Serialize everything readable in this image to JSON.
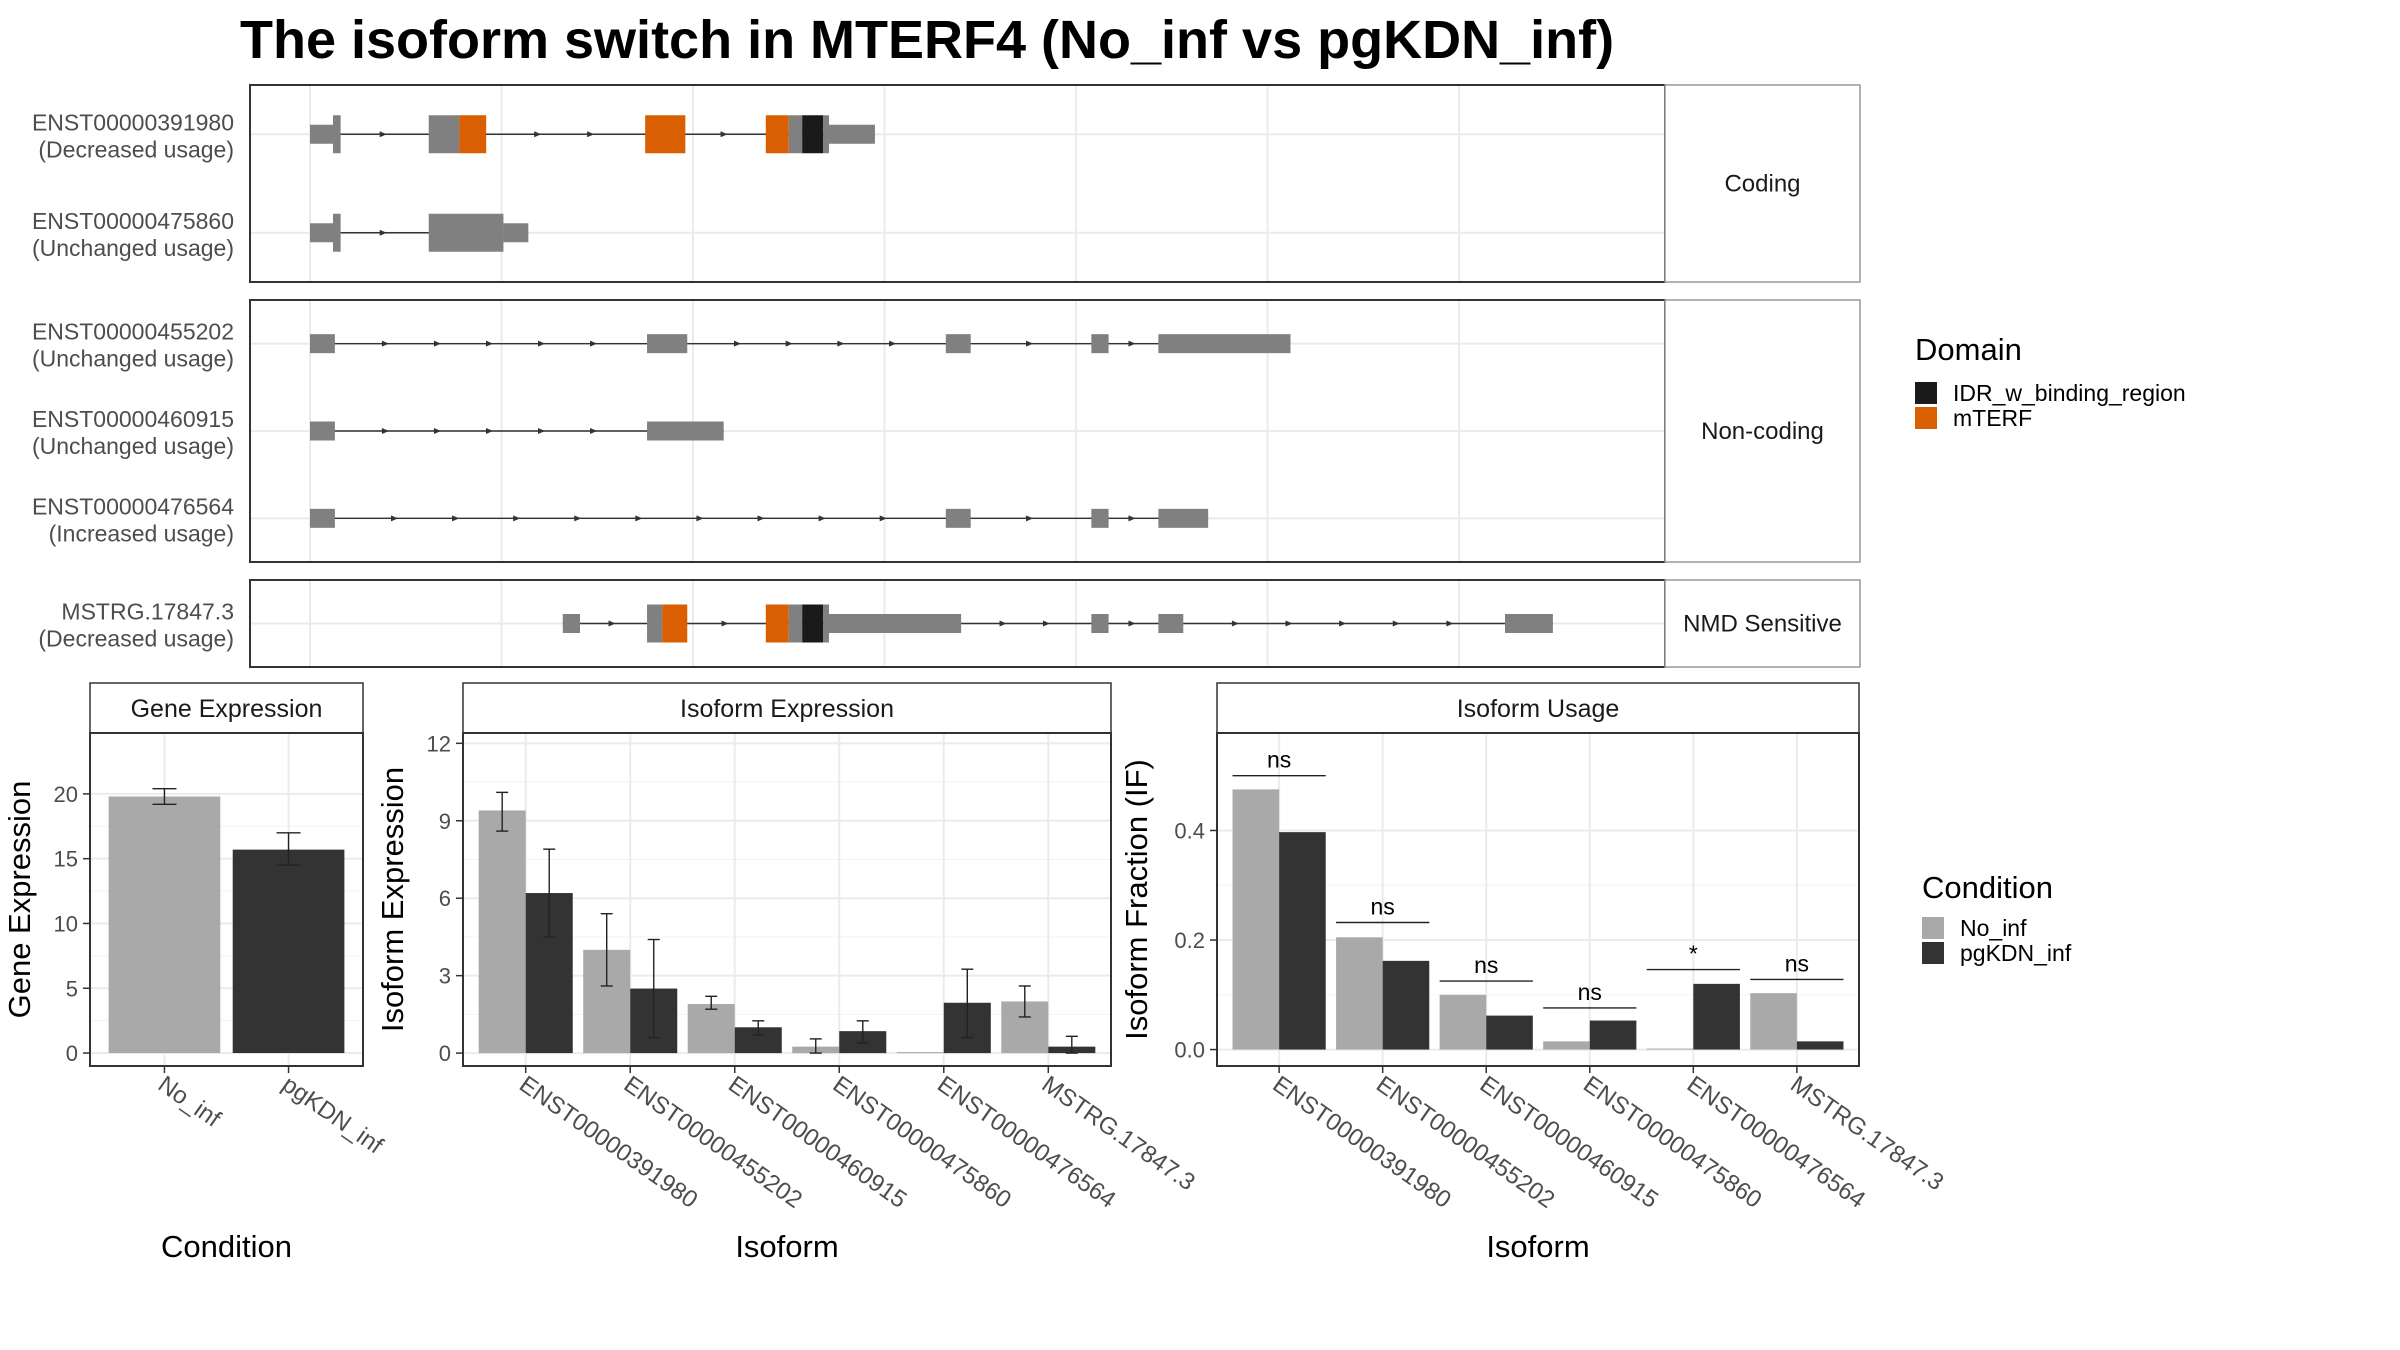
{
  "title": "The isoform switch in MTERF4 (No_inf vs pgKDN_inf)",
  "colors": {
    "exon": "#808080",
    "mTERF": "#d95f02",
    "IDR": "#1a1a1a",
    "No_inf": "#a9a9a9",
    "pgKDN_inf": "#333333",
    "panel_border": "#333333",
    "strip_fill": "#ffffff",
    "grid": "#ebebeb"
  },
  "structure": {
    "groups": [
      {
        "name": "Coding",
        "isoforms": [
          {
            "id": "ENST00000391980",
            "usage": "(Decreased usage)",
            "exons": [
              {
                "s": 0.0,
                "e": 1.2,
                "type": "utr"
              },
              {
                "s": 1.2,
                "e": 1.6,
                "type": "exon"
              },
              {
                "s": 6.2,
                "e": 7.8,
                "type": "exon"
              },
              {
                "s": 7.8,
                "e": 9.2,
                "type": "mTERF"
              },
              {
                "s": 17.5,
                "e": 19.6,
                "type": "mTERF"
              },
              {
                "s": 23.8,
                "e": 25.0,
                "type": "mTERF"
              },
              {
                "s": 25.0,
                "e": 25.7,
                "type": "exon"
              },
              {
                "s": 25.7,
                "e": 26.8,
                "type": "IDR"
              },
              {
                "s": 26.8,
                "e": 27.1,
                "type": "exon"
              },
              {
                "s": 27.1,
                "e": 29.5,
                "type": "utr"
              }
            ]
          },
          {
            "id": "ENST00000475860",
            "usage": "(Unchanged usage)",
            "exons": [
              {
                "s": 0.0,
                "e": 1.2,
                "type": "utr"
              },
              {
                "s": 1.2,
                "e": 1.6,
                "type": "exon"
              },
              {
                "s": 6.2,
                "e": 10.1,
                "type": "exon"
              },
              {
                "s": 10.1,
                "e": 11.4,
                "type": "utr"
              }
            ]
          }
        ]
      },
      {
        "name": "Non-coding",
        "isoforms": [
          {
            "id": "ENST00000455202",
            "usage": "(Unchanged usage)",
            "exons": [
              {
                "s": 0.0,
                "e": 1.3,
                "type": "utr"
              },
              {
                "s": 17.6,
                "e": 19.7,
                "type": "utr"
              },
              {
                "s": 33.2,
                "e": 34.5,
                "type": "utr"
              },
              {
                "s": 40.8,
                "e": 41.7,
                "type": "utr"
              },
              {
                "s": 44.3,
                "e": 51.2,
                "type": "utr"
              }
            ]
          },
          {
            "id": "ENST00000460915",
            "usage": "(Unchanged usage)",
            "exons": [
              {
                "s": 0.0,
                "e": 1.3,
                "type": "utr"
              },
              {
                "s": 17.6,
                "e": 21.6,
                "type": "utr"
              }
            ]
          },
          {
            "id": "ENST00000476564",
            "usage": "(Increased usage)",
            "exons": [
              {
                "s": 0.0,
                "e": 1.3,
                "type": "utr"
              },
              {
                "s": 33.2,
                "e": 34.5,
                "type": "utr"
              },
              {
                "s": 40.8,
                "e": 41.7,
                "type": "utr"
              },
              {
                "s": 44.3,
                "e": 46.9,
                "type": "utr"
              }
            ]
          }
        ]
      },
      {
        "name": "NMD Sensitive",
        "isoforms": [
          {
            "id": "MSTRG.17847.3",
            "usage": "(Decreased usage)",
            "exons": [
              {
                "s": 13.2,
                "e": 14.1,
                "type": "utr"
              },
              {
                "s": 17.6,
                "e": 18.4,
                "type": "exon"
              },
              {
                "s": 18.4,
                "e": 19.7,
                "type": "mTERF"
              },
              {
                "s": 23.8,
                "e": 25.0,
                "type": "mTERF"
              },
              {
                "s": 25.0,
                "e": 25.7,
                "type": "exon"
              },
              {
                "s": 25.7,
                "e": 26.8,
                "type": "IDR"
              },
              {
                "s": 26.8,
                "e": 27.1,
                "type": "exon"
              },
              {
                "s": 27.1,
                "e": 34.0,
                "type": "utr"
              },
              {
                "s": 40.8,
                "e": 41.7,
                "type": "utr"
              },
              {
                "s": 44.3,
                "e": 45.6,
                "type": "utr"
              },
              {
                "s": 62.4,
                "e": 64.9,
                "type": "utr"
              }
            ]
          }
        ]
      }
    ],
    "xrange": [
      -3.1,
      67.4
    ],
    "vgrid": [
      0,
      10,
      20,
      30,
      40,
      50,
      60
    ]
  },
  "domain_legend": {
    "title": "Domain",
    "items": [
      {
        "label": "IDR_w_binding_region",
        "color": "#1a1a1a"
      },
      {
        "label": "mTERF",
        "color": "#d95f02"
      }
    ]
  },
  "condition_legend": {
    "title": "Condition",
    "items": [
      {
        "label": "No_inf",
        "color": "#a9a9a9"
      },
      {
        "label": "pgKDN_inf",
        "color": "#333333"
      }
    ]
  },
  "chart_data": [
    {
      "type": "bar",
      "title": "Gene Expression",
      "xlabel": "Condition",
      "ylabel": "Gene Expression",
      "categories": [
        "No_inf",
        "pgKDN_inf"
      ],
      "values": [
        19.8,
        15.7
      ],
      "errors": [
        [
          19.2,
          20.4
        ],
        [
          14.5,
          17.0
        ]
      ],
      "ylim": [
        -1,
        24.7
      ],
      "yticks": [
        0,
        5,
        10,
        15,
        20
      ]
    },
    {
      "type": "bar",
      "title": "Isoform Expression",
      "xlabel": "Isoform",
      "ylabel": "Isoform Expression",
      "categories": [
        "ENST00000391980",
        "ENST00000455202",
        "ENST00000460915",
        "ENST00000475860",
        "ENST00000476564",
        "MSTRG.17847.3"
      ],
      "series": [
        {
          "name": "No_inf",
          "values": [
            9.4,
            4.0,
            1.9,
            0.25,
            0.0,
            2.0
          ],
          "errors": [
            [
              8.6,
              10.1
            ],
            [
              2.6,
              5.4
            ],
            [
              1.7,
              2.2
            ],
            [
              0.0,
              0.55
            ],
            [
              0.0,
              0.0
            ],
            [
              1.4,
              2.6
            ]
          ]
        },
        {
          "name": "pgKDN_inf",
          "values": [
            6.2,
            2.5,
            1.0,
            0.85,
            1.95,
            0.25
          ],
          "errors": [
            [
              4.5,
              7.9
            ],
            [
              0.6,
              4.4
            ],
            [
              0.7,
              1.25
            ],
            [
              0.4,
              1.25
            ],
            [
              0.6,
              3.25
            ],
            [
              0.0,
              0.65
            ]
          ]
        }
      ],
      "ylim": [
        -0.5,
        12.4
      ],
      "yticks": [
        0,
        3,
        6,
        9,
        12
      ]
    },
    {
      "type": "bar",
      "title": "Isoform Usage",
      "xlabel": "Isoform",
      "ylabel": "Isoform Fraction (IF)",
      "categories": [
        "ENST00000391980",
        "ENST00000455202",
        "ENST00000460915",
        "ENST00000475860",
        "ENST00000476564",
        "MSTRG.17847.3"
      ],
      "series": [
        {
          "name": "No_inf",
          "values": [
            0.475,
            0.205,
            0.1,
            0.015,
            0.0,
            0.103
          ]
        },
        {
          "name": "pgKDN_inf",
          "values": [
            0.397,
            0.162,
            0.062,
            0.053,
            0.12,
            0.015
          ]
        }
      ],
      "significance": [
        {
          "label": "ns",
          "y": 0.5
        },
        {
          "label": "ns",
          "y": 0.232
        },
        {
          "label": "ns",
          "y": 0.125
        },
        {
          "label": "ns",
          "y": 0.076
        },
        {
          "label": "*",
          "y": 0.146
        },
        {
          "label": "ns",
          "y": 0.128
        }
      ],
      "ylim": [
        -0.03,
        0.578
      ],
      "yticks": [
        0.0,
        0.2,
        0.4
      ]
    }
  ]
}
